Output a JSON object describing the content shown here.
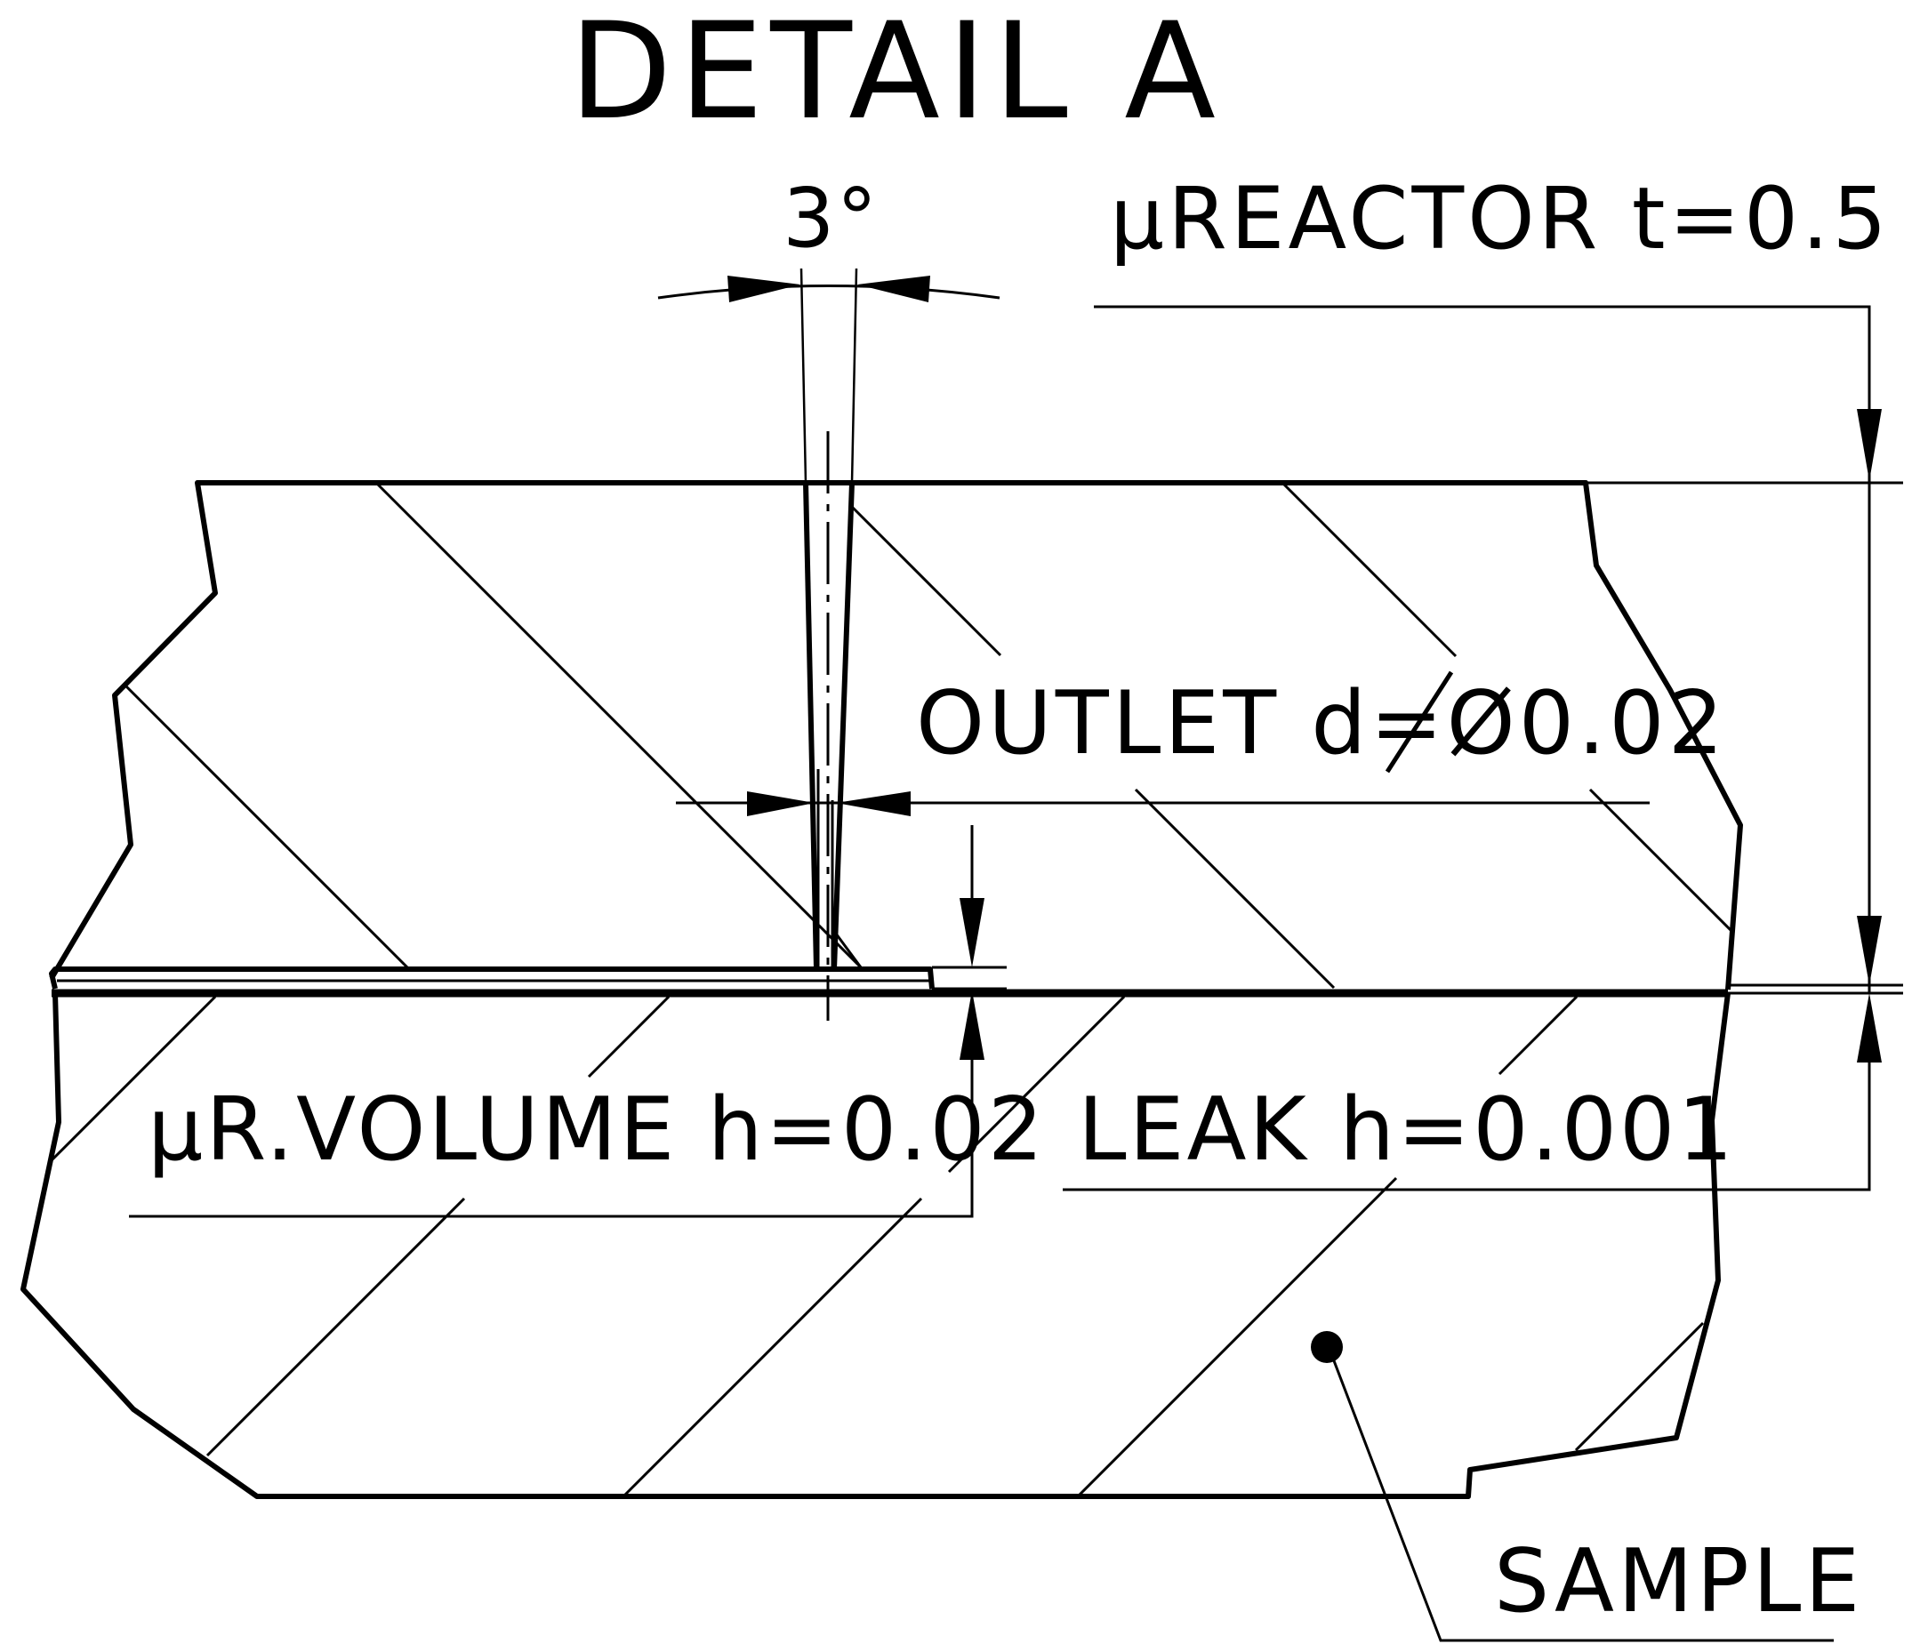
{
  "title": "DETAIL A",
  "labels": {
    "angle": "3°",
    "reactor": "µREACTOR t=0.5",
    "outlet": "OUTLET d=Ø0.02",
    "volume": "µR.VOLUME h=0.02",
    "leak": "LEAK h=0.001",
    "sample": "SAMPLE"
  }
}
